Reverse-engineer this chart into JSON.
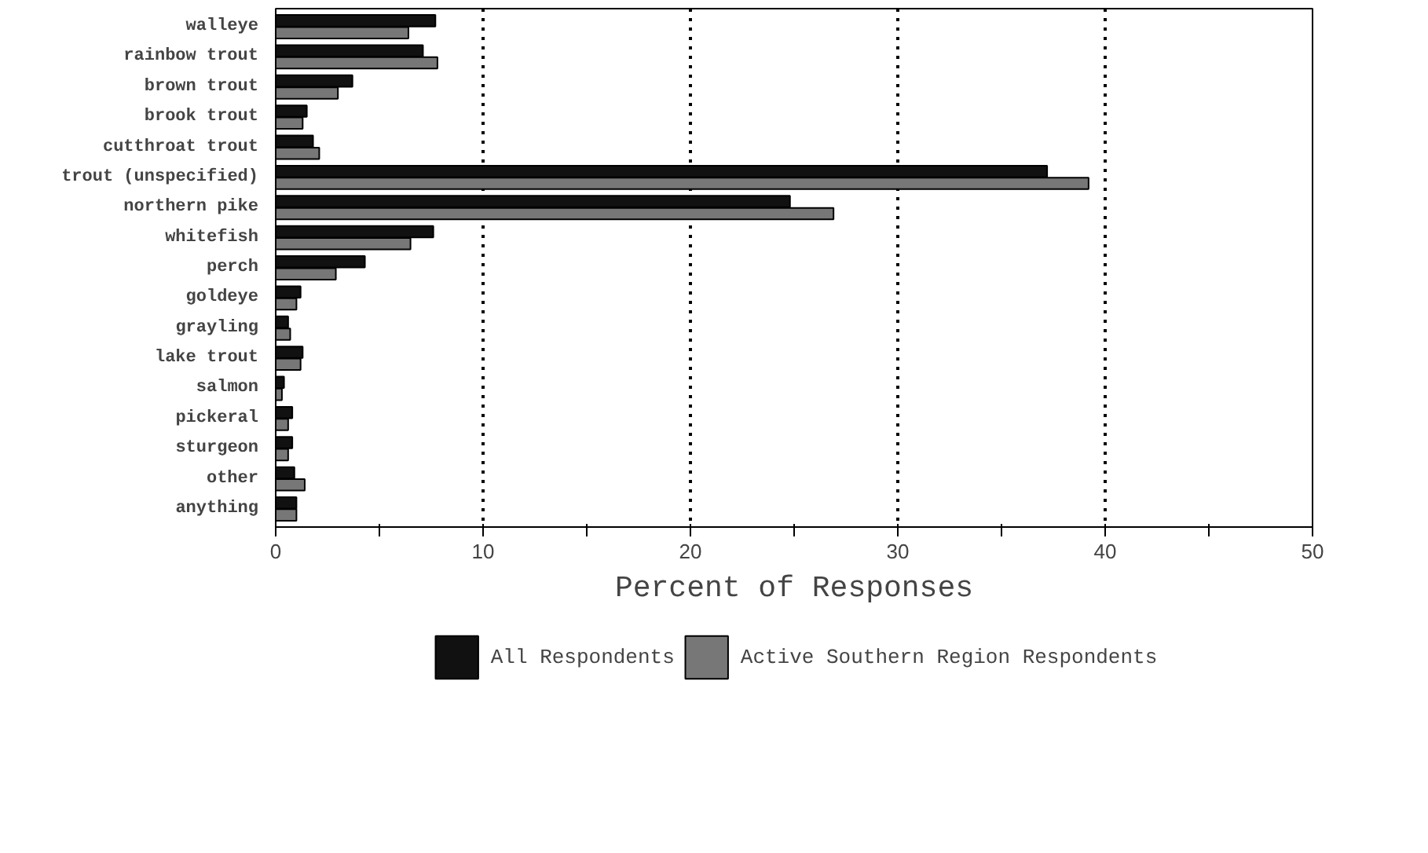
{
  "chart_data": {
    "type": "bar",
    "orientation": "horizontal",
    "xlabel": "Percent of Responses",
    "categories": [
      "walleye",
      "rainbow trout",
      "brown trout",
      "brook trout",
      "cutthroat trout",
      "trout (unspecified)",
      "northern pike",
      "whitefish",
      "perch",
      "goldeye",
      "grayling",
      "lake trout",
      "salmon",
      "pickeral",
      "sturgeon",
      "other",
      "anything"
    ],
    "series": [
      {
        "name": "All Respondents",
        "color": "#111111",
        "values": [
          7.7,
          7.1,
          3.7,
          1.5,
          1.8,
          37.2,
          24.8,
          7.6,
          4.3,
          1.2,
          0.6,
          1.3,
          0.4,
          0.8,
          0.8,
          0.9,
          1.0
        ]
      },
      {
        "name": "Active Southern Region Respondents",
        "color": "#777777",
        "values": [
          6.4,
          7.8,
          3.0,
          1.3,
          2.1,
          39.2,
          26.9,
          6.5,
          2.9,
          1.0,
          0.7,
          1.2,
          0.3,
          0.6,
          0.6,
          1.4,
          1.0
        ]
      }
    ],
    "xlim": [
      0,
      50
    ],
    "xticks": [
      0,
      {
        "value": 5,
        "label": null
      },
      10,
      {
        "value": 15,
        "label": null
      },
      20,
      {
        "value": 25,
        "label": null
      },
      30,
      {
        "value": 35,
        "label": null
      },
      40,
      {
        "value": 45,
        "label": null
      },
      50
    ],
    "grid": "x",
    "line_style": "dotted",
    "legend": "bottom"
  }
}
